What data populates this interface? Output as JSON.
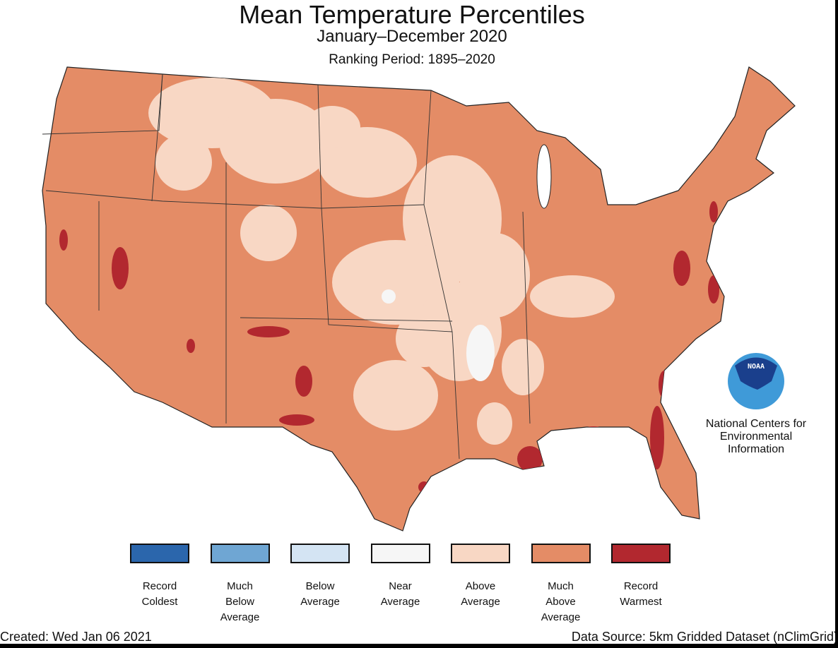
{
  "title": "Mean Temperature Percentiles",
  "subtitle": "January–December 2020",
  "ranking_period": "Ranking Period: 1895–2020",
  "logo": {
    "text": "NOAA",
    "org_lines": [
      "National Centers for",
      "Environmental",
      "Information"
    ]
  },
  "legend": [
    {
      "lines": [
        "Record",
        "Coldest"
      ],
      "color": "#2b66ac"
    },
    {
      "lines": [
        "Much",
        "Below",
        "Average"
      ],
      "color": "#6fa6d3"
    },
    {
      "lines": [
        "Below",
        "Average"
      ],
      "color": "#d4e4f3"
    },
    {
      "lines": [
        "Near",
        "Average"
      ],
      "color": "#f6f6f6"
    },
    {
      "lines": [
        "Above",
        "Average"
      ],
      "color": "#f8d7c4"
    },
    {
      "lines": [
        "Much",
        "Above",
        "Average"
      ],
      "color": "#e48c66"
    },
    {
      "lines": [
        "Record",
        "Warmest"
      ],
      "color": "#b2282f"
    }
  ],
  "created": "Created: Wed Jan 06 2021",
  "data_source": "Data Source: 5km Gridded Dataset (nClimGrid)"
}
